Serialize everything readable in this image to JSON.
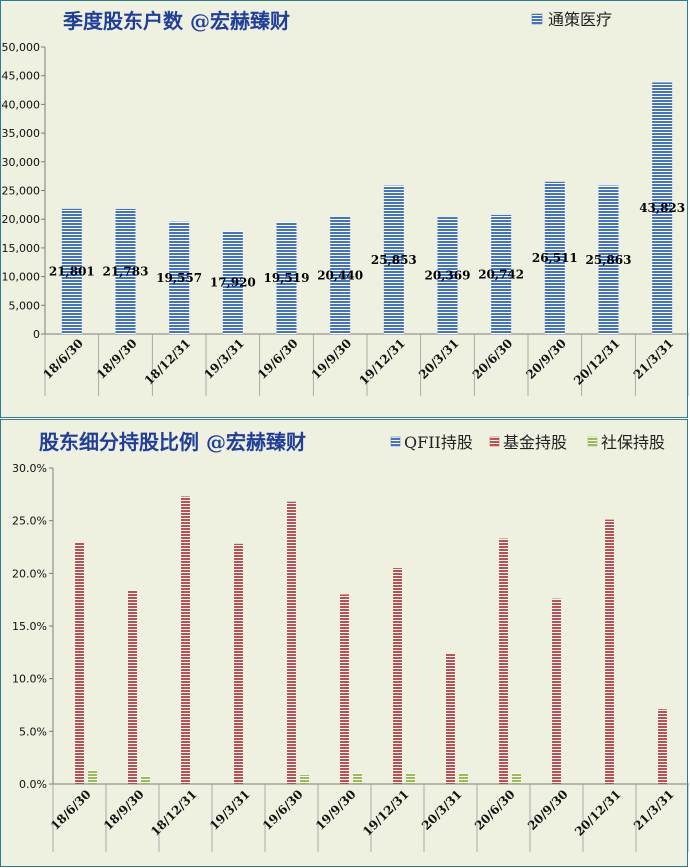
{
  "chart_data": [
    {
      "type": "bar",
      "title": "季度股东户数 @宏赫臻财",
      "categories": [
        "18/6/30",
        "18/9/30",
        "18/12/31",
        "19/3/31",
        "19/6/30",
        "19/9/30",
        "19/12/31",
        "20/3/31",
        "20/6/30",
        "20/9/30",
        "20/12/31",
        "21/3/31"
      ],
      "series": [
        {
          "name": "通策医疗",
          "values": [
            21801,
            21783,
            19557,
            17920,
            19519,
            20440,
            25853,
            20369,
            20742,
            26511,
            25863,
            43823
          ],
          "color": "#4472c4"
        }
      ],
      "data_labels": [
        "21,801",
        "21,783",
        "19,557",
        "17,920",
        "19,519",
        "20,440",
        "25,853",
        "20,369",
        "20,742",
        "26,511",
        "25,863",
        "43,823"
      ],
      "ylim": [
        0,
        50000
      ],
      "yticks": [
        "0",
        "5,000",
        "10,000",
        "15,000",
        "20,000",
        "25,000",
        "30,000",
        "35,000",
        "40,000",
        "45,000",
        "50,000"
      ],
      "xlabel": "",
      "ylabel": "",
      "grid": false,
      "legend": "top-right"
    },
    {
      "type": "bar",
      "title": "股东细分持股比例 @宏赫臻财",
      "categories": [
        "18/6/30",
        "18/9/30",
        "18/12/31",
        "19/3/31",
        "19/6/30",
        "19/9/30",
        "19/12/31",
        "20/3/31",
        "20/6/30",
        "20/9/30",
        "20/12/31",
        "21/3/31"
      ],
      "series": [
        {
          "name": "QFII持股",
          "values": [
            0,
            0,
            0,
            0,
            0,
            0,
            0,
            0,
            0,
            0,
            0,
            0
          ],
          "color": "#4472c4"
        },
        {
          "name": "基金持股",
          "values": [
            22.9,
            18.4,
            27.3,
            22.8,
            26.8,
            18.0,
            20.5,
            12.4,
            23.3,
            17.6,
            25.1,
            7.1
          ],
          "color": "#c0504d"
        },
        {
          "name": "社保持股",
          "values": [
            1.3,
            0.75,
            0,
            0,
            0.85,
            1.0,
            1.0,
            1.0,
            1.0,
            0,
            0,
            0
          ],
          "color": "#9bbb59"
        }
      ],
      "ylim": [
        0,
        30
      ],
      "yticks": [
        "0.0%",
        "5.0%",
        "10.0%",
        "15.0%",
        "20.0%",
        "25.0%",
        "30.0%"
      ],
      "xlabel": "",
      "ylabel": "",
      "grid": false,
      "legend": "top-right"
    }
  ]
}
